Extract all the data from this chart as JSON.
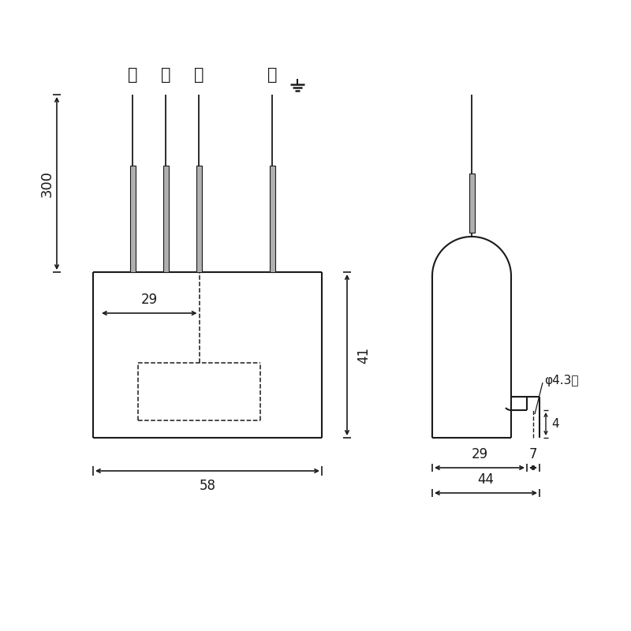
{
  "bg_color": "#ffffff",
  "line_color": "#1a1a1a",
  "gray_color": "#b0b0b0",
  "fig_size": [
    8.0,
    8.0
  ],
  "dpi": 100,
  "labels": {
    "aka": "赤",
    "shiro": "白",
    "ao": "青",
    "midori": "緑",
    "dim29": "29",
    "dim58": "58",
    "dim41": "41",
    "dim300": "300",
    "dim29b": "29",
    "dim44": "44",
    "dim7": "7",
    "dim4": "4",
    "phi43": "φ4.3穴"
  }
}
